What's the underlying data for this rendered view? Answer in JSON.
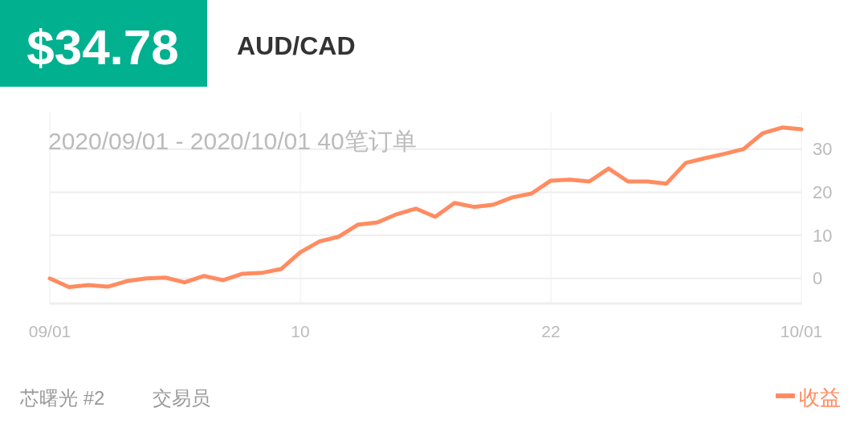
{
  "chart_data": {
    "type": "line",
    "title": "AUD/CAD",
    "subtitle": "2020/09/01 - 2020/10/01  40笔订单",
    "annotations": [
      "$34.78",
      "芯曙光 #2",
      "交易员"
    ],
    "categories": [
      "09/01",
      null,
      null,
      null,
      null,
      null,
      null,
      null,
      null,
      null,
      null,
      null,
      null,
      "10",
      null,
      null,
      null,
      null,
      null,
      null,
      null,
      null,
      null,
      null,
      null,
      null,
      "22",
      null,
      null,
      null,
      null,
      null,
      null,
      null,
      null,
      null,
      null,
      null,
      null,
      "10/01"
    ],
    "series": [
      {
        "name": "收益",
        "color": "#ff8c61",
        "values": [
          0,
          -2.0,
          -1.5,
          -1.9,
          -0.6,
          0,
          0.2,
          -0.9,
          0.6,
          -0.4,
          1.1,
          1.3,
          2.2,
          6.1,
          8.6,
          9.7,
          12.5,
          13.0,
          14.9,
          16.2,
          14.3,
          17.5,
          16.6,
          17.1,
          18.8,
          19.7,
          22.7,
          22.9,
          22.5,
          25.5,
          22.5,
          22.5,
          22.0,
          26.8,
          27.9,
          28.9,
          30.0,
          33.7,
          35.0,
          34.6
        ]
      }
    ],
    "ylim": [
      -5.8,
      38.5
    ],
    "yticks": [
      0,
      10,
      20,
      30
    ],
    "grid": true,
    "legend": "bottom right",
    "marker": "none",
    "line_style": "solid"
  }
}
